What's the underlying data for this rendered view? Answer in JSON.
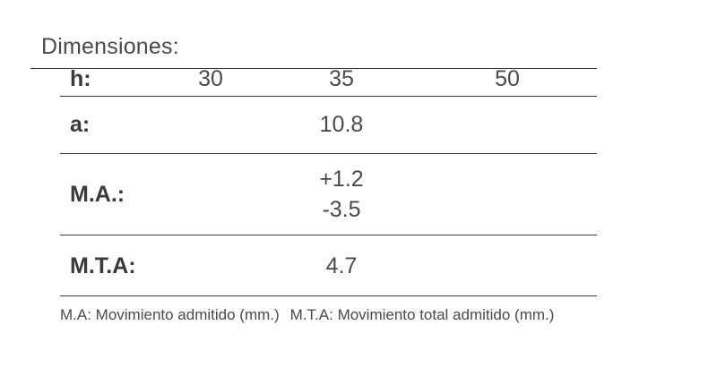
{
  "title": "Dimensiones:",
  "rows": {
    "h": {
      "label": "h:",
      "values": [
        "30",
        "35",
        "50"
      ]
    },
    "a": {
      "label": "a:",
      "value": "10.8"
    },
    "ma": {
      "label": "M.A.:",
      "values": [
        "+1.2",
        "-3.5"
      ]
    },
    "mta": {
      "label": "M.T.A:",
      "value": "4.7"
    }
  },
  "footnote": {
    "ma": "M.A: Movimiento admitido (mm.)",
    "mta": "M.T.A: Movimiento total admitido (mm.)"
  }
}
